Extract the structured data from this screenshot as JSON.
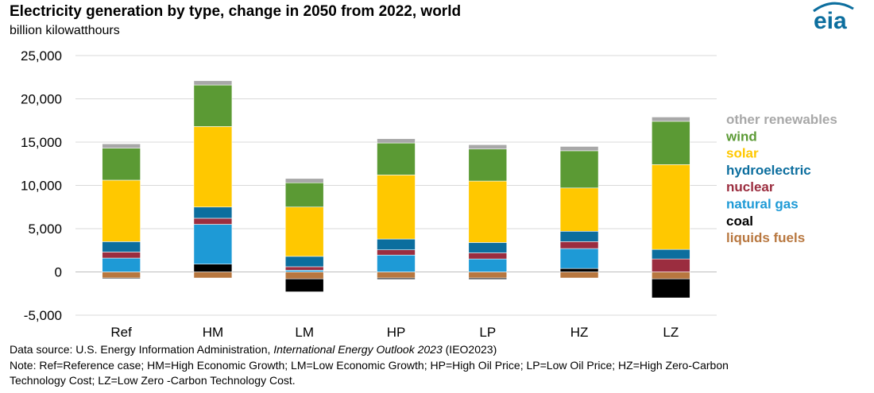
{
  "chart_data": {
    "type": "bar",
    "stacked": true,
    "title": "Electricity generation by type, change in 2050 from 2022, world",
    "ylabel": "billion kilowatthours",
    "xlabel": "",
    "ylim": [
      -5000,
      25000
    ],
    "yticks": [
      25000,
      20000,
      15000,
      10000,
      5000,
      0,
      -5000
    ],
    "ytick_labels": [
      "25,000",
      "20,000",
      "15,000",
      "10,000",
      "5,000",
      "0",
      "-5,000"
    ],
    "categories": [
      "Ref",
      "HM",
      "LM",
      "HP",
      "LP",
      "HZ",
      "LZ"
    ],
    "series": [
      {
        "name": "liquids fuels",
        "key": "liquids",
        "color": "#b8773f",
        "values": [
          -700,
          -700,
          -800,
          -700,
          -700,
          -700,
          -800
        ]
      },
      {
        "name": "coal",
        "key": "coal",
        "color": "#000000",
        "values": [
          -100,
          900,
          -1500,
          -150,
          -150,
          400,
          -2200
        ]
      },
      {
        "name": "natural gas",
        "key": "gas",
        "color": "#1e9ad6",
        "values": [
          1600,
          4600,
          200,
          1950,
          1500,
          2300,
          0
        ]
      },
      {
        "name": "nuclear",
        "key": "nuclear",
        "color": "#9b2d3f",
        "values": [
          700,
          700,
          400,
          600,
          700,
          800,
          1500
        ]
      },
      {
        "name": "hydroelectric",
        "key": "hydro",
        "color": "#0c6e9e",
        "values": [
          1200,
          1300,
          1200,
          1250,
          1200,
          1200,
          1100
        ]
      },
      {
        "name": "solar",
        "key": "solar",
        "color": "#ffc800",
        "values": [
          7100,
          9300,
          5700,
          7400,
          7100,
          5000,
          9800
        ]
      },
      {
        "name": "wind",
        "key": "wind",
        "color": "#5b9a34",
        "values": [
          3700,
          4800,
          2800,
          3700,
          3700,
          4300,
          5000
        ]
      },
      {
        "name": "other renewables",
        "key": "other",
        "color": "#a8a8a8",
        "values": [
          500,
          500,
          500,
          500,
          500,
          500,
          500
        ]
      }
    ],
    "legend_order": [
      "other renewables",
      "wind",
      "solar",
      "hydroelectric",
      "nuclear",
      "natural gas",
      "coal",
      "liquids fuels"
    ],
    "grid": true,
    "legend_position": "right"
  },
  "header": {
    "title": "Electricity generation by type, change in 2050 from 2022, world",
    "subtitle": "billion kilowatthours",
    "logo_text": "eia"
  },
  "footer": {
    "source_prefix": "Data source: U.S. Energy Information Administration,  ",
    "source_italic": "International Energy Outlook 2023",
    "source_suffix": " (IEO2023)",
    "note_line1": "Note: Ref=Reference case; HM=High Economic Growth; LM=Low Economic Growth; HP=High Oil Price; LP=Low Oil Price;  HZ=High Zero-Carbon",
    "note_line2": "Technology Cost; LZ=Low Zero -Carbon Technology Cost."
  },
  "colors": {
    "logo_blue": "#0c6e9e",
    "gridline": "#d9d9d9",
    "axis": "#bfbfbf"
  }
}
